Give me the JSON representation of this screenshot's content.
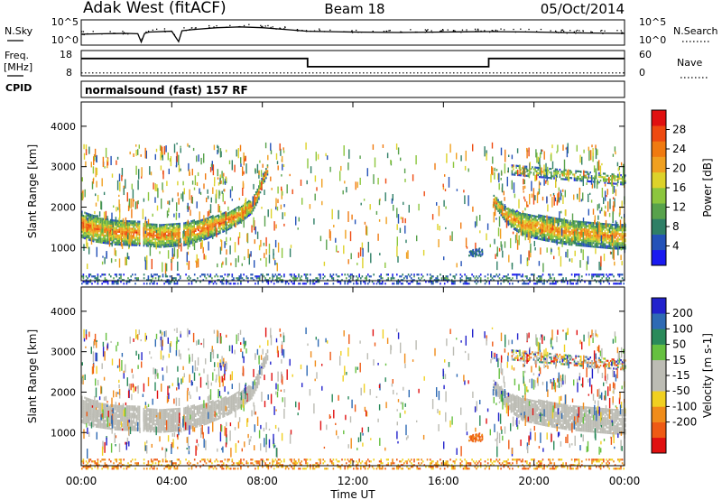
{
  "header": {
    "station": "Adak West (fitACF)",
    "beam": "Beam 18",
    "date": "05/Oct/2014"
  },
  "panels": {
    "noise": {
      "left_label": "N.Sky",
      "right_label": "N.Search",
      "ticks_left": [
        "10^5",
        "10^0"
      ],
      "ticks_right": [
        "10^5",
        "10^0"
      ]
    },
    "freq": {
      "left_label_1": "Freq.",
      "left_label_2": "[MHz]",
      "right_label": "Nave",
      "ticks_left": [
        "18",
        "8"
      ],
      "ticks_right": [
        "60",
        "0"
      ]
    },
    "cpid": {
      "left_label": "CPID",
      "text": "normalsound (fast) 157 RF"
    }
  },
  "axes": {
    "ylabel": "Slant Range [km]",
    "yticks": [
      "1000",
      "2000",
      "3000",
      "4000"
    ],
    "xlabel": "Time UT",
    "xticks": [
      "00:00",
      "04:00",
      "08:00",
      "12:00",
      "16:00",
      "20:00",
      "00:00"
    ]
  },
  "colorbars": {
    "power": {
      "label": "Power [dB]",
      "ticks": [
        "4",
        "8",
        "12",
        "16",
        "20",
        "24",
        "28"
      ]
    },
    "velocity": {
      "label": "Velocity [m s-1]",
      "ticks": [
        "200",
        "100",
        "50",
        "15",
        "-15",
        "-50",
        "-100",
        "-200"
      ]
    }
  },
  "colors": {
    "power_scale": [
      "#1a1af0",
      "#2452b8",
      "#2f7f66",
      "#58a24c",
      "#8cc63e",
      "#ddd22a",
      "#f0a020",
      "#f07a10",
      "#ee4a10",
      "#e01010"
    ],
    "velocity_scale": [
      "#2222cc",
      "#2e6ab4",
      "#2a8a5a",
      "#66c040",
      "#bcbcb4",
      "#bcbcb4",
      "#f0d020",
      "#f08c1a",
      "#ee5a14",
      "#e01010"
    ],
    "ground_scatter": "#bcbcb4"
  },
  "chart_data": [
    {
      "type": "line",
      "title": "N.Sky / N.Search",
      "x_unit": "hours UT",
      "x": [
        0,
        1,
        2,
        2.5,
        2.65,
        2.8,
        3,
        4,
        4.3,
        4.45,
        4.6,
        5,
        6,
        7,
        8,
        9,
        10,
        12,
        14,
        16,
        18,
        20,
        22,
        24
      ],
      "series": [
        {
          "name": "N.Sky",
          "values_log10": [
            2.1,
            2.2,
            2.3,
            2.2,
            0.3,
            2.3,
            2.6,
            2.8,
            0.4,
            2.9,
            3.0,
            3.2,
            3.6,
            3.8,
            3.6,
            3.2,
            2.8,
            2.6,
            2.5,
            2.6,
            2.7,
            2.6,
            2.4,
            2.3
          ]
        }
      ],
      "ylim": [
        0,
        5
      ]
    },
    {
      "type": "line",
      "title": "Frequency and Nave",
      "x_unit": "hours UT",
      "series": [
        {
          "name": "Freq.",
          "unit": "MHz",
          "x": [
            0,
            10,
            10,
            18,
            18,
            24
          ],
          "values": [
            15,
            15,
            11.5,
            11.5,
            15,
            15
          ]
        },
        {
          "name": "Nave",
          "x": [
            0,
            24
          ],
          "values": [
            5,
            5
          ]
        }
      ],
      "ylim_left": [
        8,
        18
      ],
      "ylim_right": [
        0,
        60
      ]
    },
    {
      "type": "heatmap",
      "title": "Power [dB]",
      "x_unit": "hours UT",
      "y_unit": "Slant Range [km]",
      "xlim": [
        0,
        24
      ],
      "ylim": [
        180,
        4600
      ],
      "color_range": [
        0,
        32
      ],
      "bands": [
        {
          "name": "daytime ionospheric scatter",
          "x": [
            0,
            0.5,
            1.5,
            2.5,
            3.5,
            4.5,
            5.5,
            6.5,
            7,
            7.5,
            7.8,
            8.0,
            8.2
          ],
          "center": [
            1600,
            1500,
            1400,
            1380,
            1320,
            1360,
            1500,
            1700,
            1850,
            2050,
            2350,
            2700,
            2950
          ],
          "width": [
            320,
            320,
            300,
            300,
            280,
            280,
            260,
            220,
            200,
            180,
            160,
            140,
            120
          ],
          "value": 26
        },
        {
          "name": "evening ionospheric scatter",
          "x": [
            18.2,
            18.8,
            19.5,
            20.5,
            21.5,
            22.5,
            23.5,
            24
          ],
          "center": [
            2200,
            1800,
            1600,
            1500,
            1400,
            1350,
            1300,
            1300
          ],
          "width": [
            120,
            200,
            280,
            300,
            300,
            300,
            300,
            300
          ],
          "value": 24
        },
        {
          "name": "upper scatter",
          "x": [
            19,
            20,
            21,
            22,
            23,
            24
          ],
          "center": [
            2950,
            2900,
            2850,
            2800,
            2750,
            2700
          ],
          "width": [
            120,
            120,
            120,
            120,
            120,
            120
          ],
          "value": 18
        },
        {
          "name": "near-range clutter",
          "x": [
            0,
            24
          ],
          "center": [
            250,
            250
          ],
          "width": [
            120,
            120
          ],
          "value": 10
        }
      ]
    },
    {
      "type": "heatmap",
      "title": "Velocity [m s-1]",
      "x_unit": "hours UT",
      "y_unit": "Slant Range [km]",
      "xlim": [
        0,
        24
      ],
      "ylim": [
        180,
        4600
      ],
      "color_range": [
        -200,
        200
      ],
      "note": "ground scatter drawn in grey"
    }
  ]
}
